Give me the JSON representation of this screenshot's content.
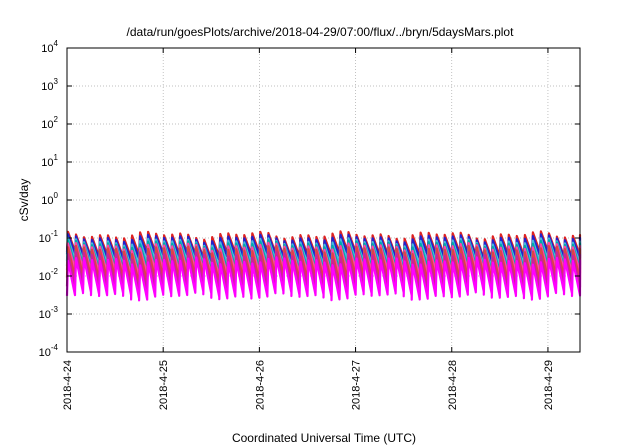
{
  "chart_data": {
    "type": "line",
    "title": "/data/run/goesPlots/archive/2018-04-29/07:00/flux/../bryn/5daysMars.plot",
    "xlabel": "Coordinated Universal Time (UTC)",
    "ylabel": "cSv/day",
    "yscale": "log",
    "ylim": [
      0.0001,
      10000
    ],
    "xlim": [
      "2018-04-24T00:00",
      "2018-04-29T08:00"
    ],
    "grid": true,
    "legend": "none",
    "y_ticks": [
      {
        "mant": "10",
        "exp": "-4",
        "value": 0.0001
      },
      {
        "mant": "10",
        "exp": "-3",
        "value": 0.001
      },
      {
        "mant": "10",
        "exp": "-2",
        "value": 0.01
      },
      {
        "mant": "10",
        "exp": "-1",
        "value": 0.1
      },
      {
        "mant": "10",
        "exp": "0",
        "value": 1
      },
      {
        "mant": "10",
        "exp": "1",
        "value": 10
      },
      {
        "mant": "10",
        "exp": "2",
        "value": 100
      },
      {
        "mant": "10",
        "exp": "3",
        "value": 1000
      },
      {
        "mant": "10",
        "exp": "4",
        "value": 10000
      }
    ],
    "x_ticks": [
      "2018-4-24",
      "2018-4-25",
      "2018-4-26",
      "2018-4-27",
      "2018-4-28",
      "2018-4-29"
    ],
    "cycle_hours": 2.0,
    "series": [
      {
        "color": "#ff00ff",
        "peak": 0.025,
        "trough": 0.003
      },
      {
        "color": "#cc2299",
        "peak": 0.035,
        "trough": 0.005
      },
      {
        "color": "#dd4444",
        "peak": 0.05,
        "trough": 0.008
      },
      {
        "color": "#ff44aa",
        "peak": 0.06,
        "trough": 0.012
      },
      {
        "color": "#00aaaa",
        "peak": 0.07,
        "trough": 0.015
      },
      {
        "color": "#44bbdd",
        "peak": 0.08,
        "trough": 0.02
      },
      {
        "color": "#2222cc",
        "peak": 0.1,
        "trough": 0.03
      },
      {
        "color": "#dd2222",
        "peak": 0.12,
        "trough": 0.035
      }
    ]
  }
}
